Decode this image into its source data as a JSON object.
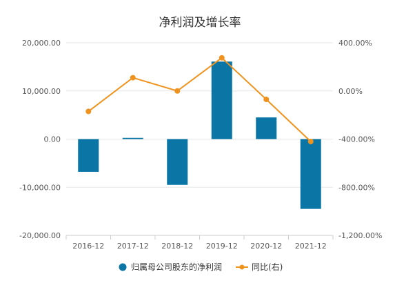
{
  "chart_data": {
    "type": "bar",
    "title": "净利润及增长率",
    "categories": [
      "2016-12",
      "2017-12",
      "2018-12",
      "2019-12",
      "2020-12",
      "2021-12"
    ],
    "left_axis": {
      "ylim": [
        -20000,
        20000
      ],
      "ticks": [
        20000,
        10000,
        0,
        -10000,
        -20000
      ],
      "tick_labels": [
        "20,000.00",
        "10,000.00",
        "0.00",
        "-10,000.00",
        "-20,000.00"
      ]
    },
    "right_axis": {
      "ylim": [
        -1200,
        400
      ],
      "ticks": [
        400,
        0,
        -400,
        -800,
        -1200
      ],
      "tick_labels": [
        "400.00%",
        "0.00%",
        "-400.00%",
        "-800.00%",
        "-1,200.00%"
      ]
    },
    "series": [
      {
        "name": "归属母公司股东的净利润",
        "type": "bar",
        "axis": "left",
        "color": "#0b75a6",
        "values": [
          -6800,
          250,
          -9500,
          16100,
          4500,
          -14500
        ]
      },
      {
        "name": "同比(右)",
        "type": "line",
        "axis": "right",
        "color": "#f0931e",
        "values": [
          -170,
          110,
          0,
          275,
          -70,
          -420
        ]
      }
    ],
    "grid": true,
    "legend_position": "bottom-center"
  }
}
